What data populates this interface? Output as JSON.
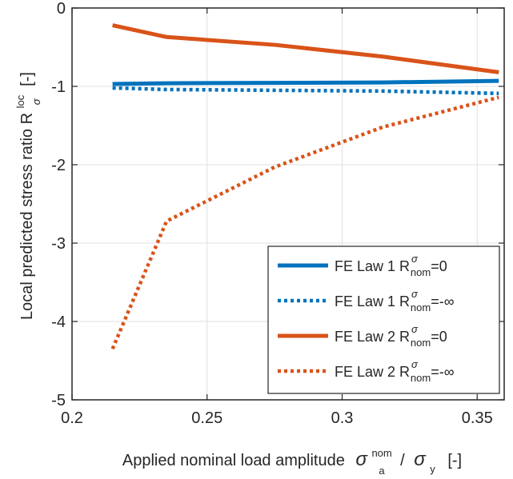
{
  "chart_data": {
    "type": "line",
    "title": "",
    "xlabel": {
      "main": "Applied nominal load amplitude",
      "sym": "σ",
      "sup": "nom",
      "sub": "a",
      "sep": "/",
      "sym2": "σ",
      "sub2": "y",
      "unit": "[-]"
    },
    "ylabel": {
      "main": "Local predicted stress ratio R",
      "sup": "loc",
      "sub": "σ",
      "unit": "[-]"
    },
    "xlim": [
      0.2,
      0.36
    ],
    "ylim": [
      -5,
      0
    ],
    "xticks": [
      0.2,
      0.25,
      0.3,
      0.35
    ],
    "xtick_labels": [
      "0.2",
      "0.25",
      "0.3",
      "0.35"
    ],
    "yticks": [
      -5,
      -4,
      -3,
      -2,
      -1,
      0
    ],
    "ytick_labels": [
      "-5",
      "-4",
      "-3",
      "-2",
      "-1",
      "0"
    ],
    "grid": true,
    "legend_position": "bottom-right",
    "series": [
      {
        "name": "FE Law 1 R",
        "sup": "σ",
        "sub": "nom",
        "suffix": "=0",
        "color": "#0072BD",
        "style": "solid",
        "x": [
          0.215,
          0.235,
          0.275,
          0.315,
          0.358
        ],
        "y": [
          -0.97,
          -0.96,
          -0.955,
          -0.95,
          -0.93
        ]
      },
      {
        "name": "FE Law 1 R",
        "sup": "σ",
        "sub": "nom",
        "suffix": "=-∞",
        "color": "#0072BD",
        "style": "dotted",
        "x": [
          0.215,
          0.235,
          0.275,
          0.315,
          0.358
        ],
        "y": [
          -1.02,
          -1.04,
          -1.05,
          -1.06,
          -1.09
        ]
      },
      {
        "name": "FE Law 2 R",
        "sup": "σ",
        "sub": "nom",
        "suffix": "=0",
        "color": "#D95319",
        "style": "solid",
        "x": [
          0.215,
          0.235,
          0.275,
          0.315,
          0.358
        ],
        "y": [
          -0.22,
          -0.37,
          -0.47,
          -0.62,
          -0.82
        ]
      },
      {
        "name": "FE Law 2 R",
        "sup": "σ",
        "sub": "nom",
        "suffix": "=-∞",
        "color": "#D95319",
        "style": "dotted",
        "x": [
          0.215,
          0.235,
          0.275,
          0.315,
          0.358
        ],
        "y": [
          -4.35,
          -2.72,
          -2.03,
          -1.52,
          -1.14
        ]
      }
    ]
  }
}
